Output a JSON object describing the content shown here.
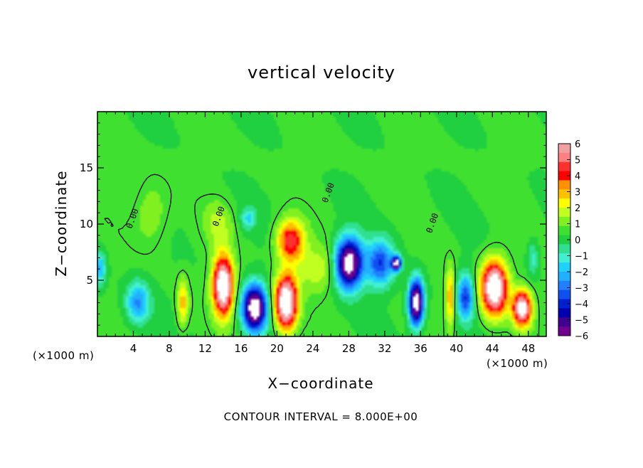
{
  "chart_data": {
    "type": "heatmap",
    "title": "vertical velocity",
    "xlabel": "X−coordinate",
    "ylabel": "Z−coordinate",
    "x_units_label_left": "(×1000 m)",
    "x_units_label_right": "(×1000 m)",
    "footer": "CONTOUR INTERVAL = 8.000E+00",
    "xlim": [
      0,
      50
    ],
    "ylim": [
      0,
      20
    ],
    "x_ticks": [
      4,
      8,
      12,
      16,
      20,
      24,
      28,
      32,
      36,
      40,
      44,
      48
    ],
    "y_ticks": [
      5,
      10,
      15
    ],
    "colorbar": {
      "ticks": [
        "6",
        "5",
        "4",
        "3",
        "2",
        "1",
        "0",
        "−1",
        "−2",
        "−3",
        "−4",
        "−5",
        "−6"
      ],
      "colors": [
        "#f0a0a0",
        "#ff8080",
        "#ff3030",
        "#ff0000",
        "#ff9000",
        "#ffc000",
        "#ffff00",
        "#c0ff20",
        "#80f020",
        "#40e030",
        "#20d040",
        "#30e090",
        "#40f0d0",
        "#20d0ff",
        "#20b0ff",
        "#2080ff",
        "#1050f0",
        "#0020d0",
        "#0000b0",
        "#400090",
        "#700090"
      ]
    },
    "contour_labels": [
      {
        "text": "0.00",
        "x": 4.2,
        "y": 10.4
      },
      {
        "text": "0.00",
        "x": 13.8,
        "y": 10.6
      },
      {
        "text": "0.00",
        "x": 26.0,
        "y": 12.7
      },
      {
        "text": "0.00",
        "x": 37.6,
        "y": 10.0
      }
    ],
    "features": [
      {
        "kind": "updraft",
        "x": 14.0,
        "z": 4.5,
        "sx": 1.1,
        "sz": 2.5,
        "amp": 8
      },
      {
        "kind": "updraft",
        "x": 21.0,
        "z": 3.0,
        "sx": 1.2,
        "sz": 2.3,
        "amp": 8
      },
      {
        "kind": "updraft",
        "x": 21.5,
        "z": 8.5,
        "sx": 1.5,
        "sz": 1.8,
        "amp": 4.5
      },
      {
        "kind": "updraft",
        "x": 44.2,
        "z": 4.3,
        "sx": 1.4,
        "sz": 2.3,
        "amp": 8
      },
      {
        "kind": "updraft",
        "x": 47.3,
        "z": 2.5,
        "sx": 1.0,
        "sz": 1.5,
        "amp": 7
      },
      {
        "kind": "updraft",
        "x": 39.3,
        "z": 3.5,
        "sx": 0.5,
        "sz": 2.5,
        "amp": 3
      },
      {
        "kind": "updraft",
        "x": 9.5,
        "z": 3.0,
        "sx": 0.6,
        "sz": 2.0,
        "amp": 2.5
      },
      {
        "kind": "updraft",
        "x": 24.5,
        "z": 6.0,
        "sx": 2.5,
        "sz": 2.0,
        "amp": 1.5
      },
      {
        "kind": "downdraft",
        "x": 17.5,
        "z": 2.5,
        "sx": 1.3,
        "sz": 2.0,
        "amp": -8
      },
      {
        "kind": "downdraft",
        "x": 28.0,
        "z": 6.5,
        "sx": 1.5,
        "sz": 2.2,
        "amp": -8
      },
      {
        "kind": "downdraft",
        "x": 31.5,
        "z": 6.5,
        "sx": 1.5,
        "sz": 2.0,
        "amp": -4
      },
      {
        "kind": "downdraft",
        "x": 35.5,
        "z": 3.0,
        "sx": 0.8,
        "sz": 2.0,
        "amp": -8
      },
      {
        "kind": "downdraft",
        "x": 33.3,
        "z": 6.5,
        "sx": 0.5,
        "sz": 0.6,
        "amp": -7
      },
      {
        "kind": "downdraft",
        "x": 41.0,
        "z": 3.5,
        "sx": 0.9,
        "sz": 2.0,
        "amp": -4
      },
      {
        "kind": "downdraft",
        "x": 4.5,
        "z": 3.0,
        "sx": 1.3,
        "sz": 1.8,
        "amp": -3
      },
      {
        "kind": "downdraft",
        "x": 16.8,
        "z": 10.5,
        "sx": 0.8,
        "sz": 1.0,
        "amp": -1.8
      },
      {
        "kind": "downdraft",
        "x": 0.3,
        "z": 6.0,
        "sx": 0.6,
        "sz": 1.5,
        "amp": -2.5
      },
      {
        "kind": "downdraft",
        "x": 48.5,
        "z": 7.0,
        "sx": 0.6,
        "sz": 1.5,
        "amp": -1.5
      },
      {
        "kind": "updraft",
        "x": 6.0,
        "z": 11.0,
        "sx": 2.0,
        "sz": 3.0,
        "amp": 1.0
      },
      {
        "kind": "updraft",
        "x": 13.5,
        "z": 10.0,
        "sx": 1.5,
        "sz": 2.0,
        "amp": 1.2
      }
    ]
  }
}
